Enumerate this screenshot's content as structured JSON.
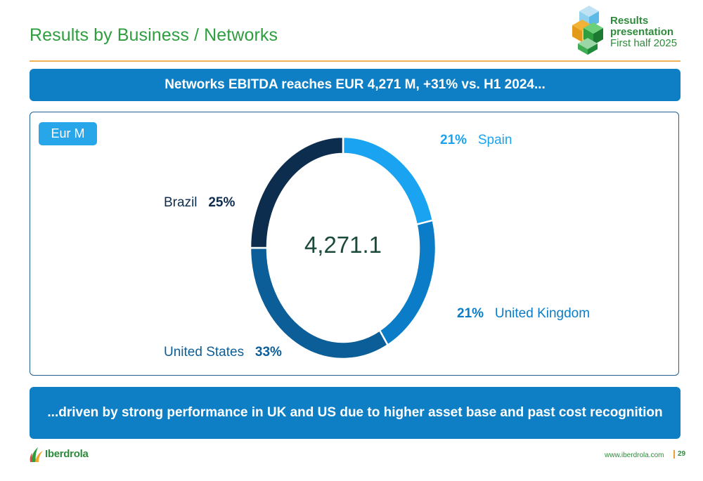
{
  "slide": {
    "title": "Results by Business / Networks",
    "badge": {
      "line1": "Results",
      "line2": "presentation",
      "line3": "First half 2025"
    },
    "top_banner": "Networks EBITDA reaches EUR 4,271 M, +31% vs. H1 2024...",
    "bottom_banner": "...driven by strong performance in UK and US due to higher asset base and past cost recognition",
    "unit_tag": "Eur M",
    "footer": {
      "brand": "Iberdrola",
      "url": "www.iberdrola.com",
      "page": "29"
    }
  },
  "colors": {
    "title_green": "#2e9e3f",
    "banner_blue": "#0f7fc5",
    "spain": "#1aa3f0",
    "united_kingdom": "#0b7dc8",
    "united_states": "#0c5e98",
    "brazil": "#0d2d4e"
  },
  "chart_data": {
    "type": "pie",
    "donut": true,
    "title": "",
    "center_label": "4,271.1",
    "total": 4271.1,
    "slices": [
      {
        "label": "Spain",
        "value_pct": 21,
        "value_text": "21%",
        "color": "#1aa3f0"
      },
      {
        "label": "United Kingdom",
        "value_pct": 21,
        "value_text": "21%",
        "color": "#0b7dc8"
      },
      {
        "label": "United States",
        "value_pct": 33,
        "value_text": "33%",
        "color": "#0c5e98"
      },
      {
        "label": "Brazil",
        "value_pct": 25,
        "value_text": "25%",
        "color": "#0d2d4e"
      }
    ]
  }
}
